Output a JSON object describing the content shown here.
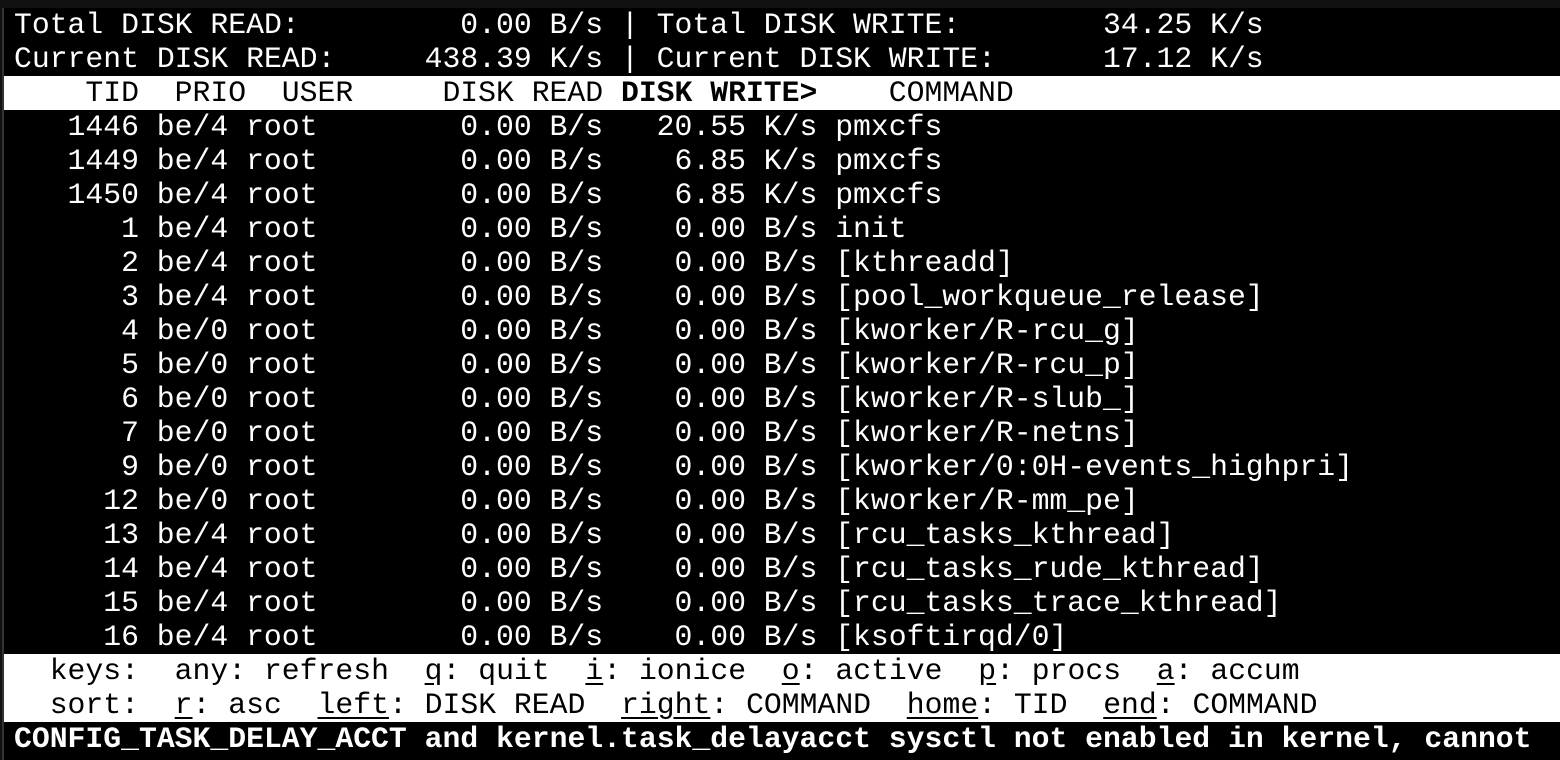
{
  "summary": {
    "total_read_label": "Total DISK READ:",
    "total_read": "0.00 B/s",
    "total_write_label": "Total DISK WRITE:",
    "total_write": "34.25 K/s",
    "current_read_label": "Current DISK READ:",
    "current_read": "438.39 K/s",
    "current_write_label": "Current DISK WRITE:",
    "current_write": "17.12 K/s",
    "separator": "|"
  },
  "columns": {
    "tid": "TID",
    "prio": "PRIO",
    "user": "USER",
    "disk_read": "DISK READ",
    "disk_write": "DISK WRITE>",
    "command": "COMMAND",
    "sorted_by": "disk_write"
  },
  "rows": [
    {
      "tid": "1446",
      "prio": "be/4",
      "user": "root",
      "read": "0.00 B/s",
      "write": "20.55 K/s",
      "command": "pmxcfs"
    },
    {
      "tid": "1449",
      "prio": "be/4",
      "user": "root",
      "read": "0.00 B/s",
      "write": "6.85 K/s",
      "command": "pmxcfs"
    },
    {
      "tid": "1450",
      "prio": "be/4",
      "user": "root",
      "read": "0.00 B/s",
      "write": "6.85 K/s",
      "command": "pmxcfs"
    },
    {
      "tid": "1",
      "prio": "be/4",
      "user": "root",
      "read": "0.00 B/s",
      "write": "0.00 B/s",
      "command": "init"
    },
    {
      "tid": "2",
      "prio": "be/4",
      "user": "root",
      "read": "0.00 B/s",
      "write": "0.00 B/s",
      "command": "[kthreadd]"
    },
    {
      "tid": "3",
      "prio": "be/4",
      "user": "root",
      "read": "0.00 B/s",
      "write": "0.00 B/s",
      "command": "[pool_workqueue_release]"
    },
    {
      "tid": "4",
      "prio": "be/0",
      "user": "root",
      "read": "0.00 B/s",
      "write": "0.00 B/s",
      "command": "[kworker/R-rcu_g]"
    },
    {
      "tid": "5",
      "prio": "be/0",
      "user": "root",
      "read": "0.00 B/s",
      "write": "0.00 B/s",
      "command": "[kworker/R-rcu_p]"
    },
    {
      "tid": "6",
      "prio": "be/0",
      "user": "root",
      "read": "0.00 B/s",
      "write": "0.00 B/s",
      "command": "[kworker/R-slub_]"
    },
    {
      "tid": "7",
      "prio": "be/0",
      "user": "root",
      "read": "0.00 B/s",
      "write": "0.00 B/s",
      "command": "[kworker/R-netns]"
    },
    {
      "tid": "9",
      "prio": "be/0",
      "user": "root",
      "read": "0.00 B/s",
      "write": "0.00 B/s",
      "command": "[kworker/0:0H-events_highpri]"
    },
    {
      "tid": "12",
      "prio": "be/0",
      "user": "root",
      "read": "0.00 B/s",
      "write": "0.00 B/s",
      "command": "[kworker/R-mm_pe]"
    },
    {
      "tid": "13",
      "prio": "be/4",
      "user": "root",
      "read": "0.00 B/s",
      "write": "0.00 B/s",
      "command": "[rcu_tasks_kthread]"
    },
    {
      "tid": "14",
      "prio": "be/4",
      "user": "root",
      "read": "0.00 B/s",
      "write": "0.00 B/s",
      "command": "[rcu_tasks_rude_kthread]"
    },
    {
      "tid": "15",
      "prio": "be/4",
      "user": "root",
      "read": "0.00 B/s",
      "write": "0.00 B/s",
      "command": "[rcu_tasks_trace_kthread]"
    },
    {
      "tid": "16",
      "prio": "be/4",
      "user": "root",
      "read": "0.00 B/s",
      "write": "0.00 B/s",
      "command": "[ksoftirqd/0]"
    }
  ],
  "keys": {
    "label": "keys:",
    "items": [
      {
        "key": "any",
        "desc": "refresh",
        "underline": false
      },
      {
        "key": "q",
        "desc": "quit",
        "underline": true
      },
      {
        "key": "i",
        "desc": "ionice",
        "underline": true
      },
      {
        "key": "o",
        "desc": "active",
        "underline": true
      },
      {
        "key": "p",
        "desc": "procs",
        "underline": true
      },
      {
        "key": "a",
        "desc": "accum",
        "underline": true
      }
    ]
  },
  "sort": {
    "label": "sort:",
    "items": [
      {
        "key": "r",
        "desc": "asc",
        "underline": true
      },
      {
        "key": "left",
        "desc": "DISK READ",
        "underline": true
      },
      {
        "key": "right",
        "desc": "COMMAND",
        "underline": true
      },
      {
        "key": "home",
        "desc": "TID",
        "underline": true
      },
      {
        "key": "end",
        "desc": "COMMAND",
        "underline": true
      }
    ]
  },
  "warning": "CONFIG_TASK_DELAY_ACCT and kernel.task_delayacct sysctl not enabled in kernel, cannot"
}
